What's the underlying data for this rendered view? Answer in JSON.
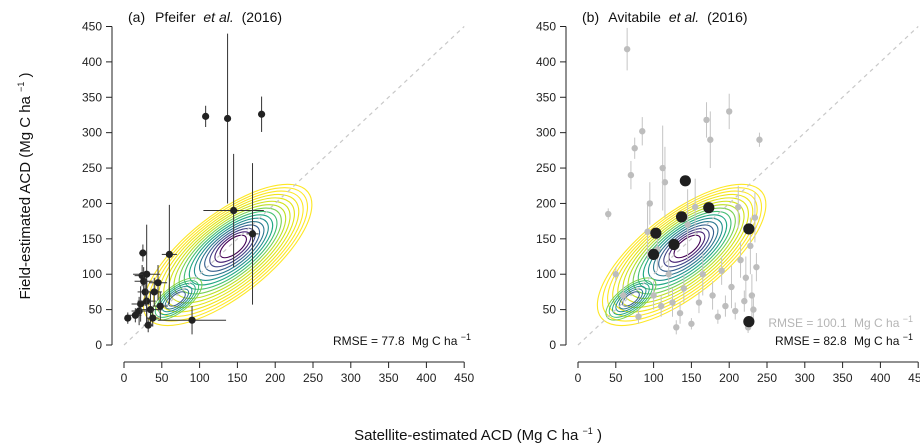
{
  "chart_data": [
    {
      "type": "scatter",
      "panel_label": "(a)",
      "title_author": "Pfeifer",
      "title_etal": "et al.",
      "title_year": "(2016)",
      "xlim": [
        0,
        450
      ],
      "ylim": [
        0,
        450
      ],
      "ticks": [
        0,
        50,
        100,
        150,
        200,
        250,
        300,
        350,
        400,
        450
      ],
      "one_to_one_line": true,
      "density_contours": {
        "center": [
          145,
          140
        ],
        "levels": 16,
        "colormap": "viridis"
      },
      "rmse_prefix": "RMSE = 77.8",
      "rmse_unit": "Mg C ha",
      "rmse_exp": "−1",
      "points": [
        {
          "x": 5,
          "y": 38,
          "xerr": 3,
          "yerr": 8
        },
        {
          "x": 15,
          "y": 42,
          "xerr": 8,
          "yerr": 10
        },
        {
          "x": 20,
          "y": 48,
          "xerr": 10,
          "yerr": 20
        },
        {
          "x": 22,
          "y": 58,
          "xerr": 12,
          "yerr": 25
        },
        {
          "x": 24,
          "y": 98,
          "xerr": 10,
          "yerr": 15
        },
        {
          "x": 25,
          "y": 130,
          "xerr": 5,
          "yerr": 12
        },
        {
          "x": 26,
          "y": 90,
          "xerr": 12,
          "yerr": 20
        },
        {
          "x": 28,
          "y": 75,
          "xerr": 10,
          "yerr": 20
        },
        {
          "x": 30,
          "y": 62,
          "xerr": 12,
          "yerr": 30
        },
        {
          "x": 30,
          "y": 100,
          "xerr": 18,
          "yerr": 70
        },
        {
          "x": 32,
          "y": 28,
          "xerr": 6,
          "yerr": 10
        },
        {
          "x": 35,
          "y": 50,
          "xerr": 15,
          "yerr": 25
        },
        {
          "x": 38,
          "y": 38,
          "xerr": 8,
          "yerr": 12
        },
        {
          "x": 40,
          "y": 75,
          "xerr": 10,
          "yerr": 20
        },
        {
          "x": 45,
          "y": 88,
          "xerr": 12,
          "yerr": 25
        },
        {
          "x": 48,
          "y": 55,
          "xerr": 10,
          "yerr": 20
        },
        {
          "x": 60,
          "y": 128,
          "xerr": 10,
          "yerr": 70
        },
        {
          "x": 90,
          "y": 35,
          "xerr": 45,
          "yerr": 20
        },
        {
          "x": 108,
          "y": 323,
          "xerr": 4,
          "yerr": 15
        },
        {
          "x": 137,
          "y": 320,
          "xerr": 3,
          "yerr": 120
        },
        {
          "x": 145,
          "y": 190,
          "xerr": 40,
          "yerr": 80
        },
        {
          "x": 170,
          "y": 157,
          "xerr": 8,
          "yerr": 100
        },
        {
          "x": 182,
          "y": 326,
          "xerr": 4,
          "yerr": 25
        }
      ]
    },
    {
      "type": "scatter",
      "panel_label": "(b)",
      "title_author": "Avitabile",
      "title_etal": "et al.",
      "title_year": "(2016)",
      "xlim": [
        0,
        450
      ],
      "ylim": [
        0,
        450
      ],
      "ticks": [
        0,
        50,
        100,
        150,
        200,
        250,
        300,
        350,
        400,
        450
      ],
      "one_to_one_line": true,
      "density_contours": {
        "center": [
          145,
          140
        ],
        "levels": 16,
        "colormap": "viridis"
      },
      "rmse_grey_prefix": "RMSE = 100.1",
      "rmse_grey_unit": "Mg C ha",
      "rmse_grey_exp": "−1",
      "rmse_black_prefix": "RMSE = 82.8",
      "rmse_black_unit": "Mg C ha",
      "rmse_black_exp": "−1",
      "grey_points": [
        {
          "x": 40,
          "y": 185,
          "yerr": 8
        },
        {
          "x": 65,
          "y": 418,
          "yerr": 30
        },
        {
          "x": 70,
          "y": 240,
          "yerr": 20
        },
        {
          "x": 75,
          "y": 278,
          "yerr": 15
        },
        {
          "x": 85,
          "y": 302,
          "yerr": 20
        },
        {
          "x": 92,
          "y": 160,
          "yerr": 40
        },
        {
          "x": 95,
          "y": 200,
          "yerr": 30
        },
        {
          "x": 100,
          "y": 70,
          "yerr": 20
        },
        {
          "x": 105,
          "y": 135,
          "yerr": 30
        },
        {
          "x": 110,
          "y": 55,
          "yerr": 15
        },
        {
          "x": 115,
          "y": 230,
          "yerr": 50
        },
        {
          "x": 120,
          "y": 100,
          "yerr": 30
        },
        {
          "x": 125,
          "y": 60,
          "yerr": 20
        },
        {
          "x": 130,
          "y": 25,
          "yerr": 10
        },
        {
          "x": 135,
          "y": 45,
          "yerr": 15
        },
        {
          "x": 140,
          "y": 80,
          "yerr": 20
        },
        {
          "x": 150,
          "y": 30,
          "yerr": 8
        },
        {
          "x": 155,
          "y": 195,
          "yerr": 40
        },
        {
          "x": 160,
          "y": 60,
          "yerr": 15
        },
        {
          "x": 165,
          "y": 100,
          "yerr": 30
        },
        {
          "x": 170,
          "y": 318,
          "yerr": 25
        },
        {
          "x": 175,
          "y": 290,
          "yerr": 40
        },
        {
          "x": 178,
          "y": 70,
          "yerr": 20
        },
        {
          "x": 185,
          "y": 40,
          "yerr": 10
        },
        {
          "x": 190,
          "y": 105,
          "yerr": 20
        },
        {
          "x": 195,
          "y": 55,
          "yerr": 15
        },
        {
          "x": 200,
          "y": 330,
          "yerr": 25
        },
        {
          "x": 203,
          "y": 82,
          "yerr": 30
        },
        {
          "x": 208,
          "y": 48,
          "yerr": 12
        },
        {
          "x": 212,
          "y": 195,
          "yerr": 30
        },
        {
          "x": 215,
          "y": 120,
          "yerr": 25
        },
        {
          "x": 220,
          "y": 62,
          "yerr": 15
        },
        {
          "x": 222,
          "y": 95,
          "yerr": 30
        },
        {
          "x": 225,
          "y": 25,
          "yerr": 8
        },
        {
          "x": 228,
          "y": 140,
          "yerr": 40
        },
        {
          "x": 230,
          "y": 70,
          "yerr": 30
        },
        {
          "x": 232,
          "y": 50,
          "yerr": 20
        },
        {
          "x": 234,
          "y": 180,
          "yerr": 35
        },
        {
          "x": 236,
          "y": 110,
          "yerr": 20
        },
        {
          "x": 240,
          "y": 290,
          "yerr": 10
        },
        {
          "x": 60,
          "y": 70,
          "yerr": 15
        },
        {
          "x": 80,
          "y": 40,
          "yerr": 10
        },
        {
          "x": 50,
          "y": 100,
          "yerr": 10
        },
        {
          "x": 112,
          "y": 250,
          "yerr": 60
        },
        {
          "x": 145,
          "y": 170,
          "yerr": 50
        }
      ],
      "black_points": [
        {
          "x": 100,
          "y": 128
        },
        {
          "x": 103,
          "y": 158
        },
        {
          "x": 127,
          "y": 142
        },
        {
          "x": 137,
          "y": 181
        },
        {
          "x": 142,
          "y": 232
        },
        {
          "x": 173,
          "y": 194
        },
        {
          "x": 226,
          "y": 164
        },
        {
          "x": 226,
          "y": 33
        }
      ]
    }
  ],
  "x_axis_title": "Satellite-estimated ACD (Mg C  ha",
  "x_axis_exp": "−1",
  "x_axis_close": ")",
  "y_axis_title": "Field-estimated ACD (Mg C  ha",
  "y_axis_exp": "−1",
  "y_axis_close": ")"
}
